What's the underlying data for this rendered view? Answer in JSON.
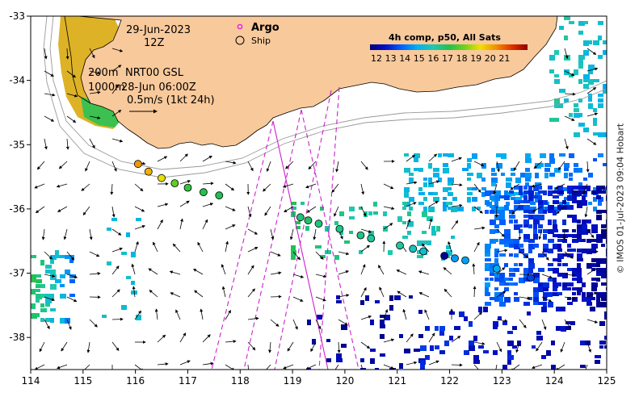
{
  "header": {
    "date": "29-Jun-2023",
    "hour": "12Z",
    "depth_line1_label": "200m",
    "product": "NRT00 GSL",
    "depth_line2_label": "1000m",
    "altimetry_time": "28-Jun 06:00Z",
    "vector_scale": "0.5m/s (1kt 24h)"
  },
  "legend": {
    "argo_label": "Argo",
    "ship_label": "Ship",
    "argo_color": "#e020e0"
  },
  "colorbar": {
    "title": "4h comp, p50, All Sats",
    "ticks": [
      "12",
      "13",
      "14",
      "15",
      "16",
      "17",
      "18",
      "19",
      "20",
      "21"
    ],
    "colors": [
      "#000080",
      "#0010c8",
      "#0060ff",
      "#00b0f0",
      "#20c8b0",
      "#20c050",
      "#70d020",
      "#f0e000",
      "#f09000",
      "#e03000",
      "#900000"
    ]
  },
  "axes": {
    "x_ticks": [
      "114",
      "115",
      "116",
      "117",
      "118",
      "119",
      "120",
      "121",
      "122",
      "123",
      "124",
      "125"
    ],
    "y_ticks": [
      "-33",
      "-34",
      "-35",
      "-36",
      "-37",
      "-38"
    ],
    "lon_range": [
      114,
      125
    ],
    "lat_range": [
      -38.5,
      -33
    ]
  },
  "colors": {
    "land": "#f8c99b",
    "coast": "#000000",
    "contour": "#999999",
    "track": "#cc22cc"
  },
  "ship_track": [
    {
      "lon": 116.05,
      "lat": -35.3,
      "sst": 19.5
    },
    {
      "lon": 116.25,
      "lat": -35.42,
      "sst": 19.2
    },
    {
      "lon": 116.5,
      "lat": -35.52,
      "sst": 18.6
    },
    {
      "lon": 116.75,
      "lat": -35.6,
      "sst": 17.5
    },
    {
      "lon": 117.0,
      "lat": -35.67,
      "sst": 17.0
    },
    {
      "lon": 117.3,
      "lat": -35.74,
      "sst": 16.8
    },
    {
      "lon": 117.6,
      "lat": -35.79,
      "sst": 16.7
    },
    {
      "lon": 119.15,
      "lat": -36.13,
      "sst": 16.3
    },
    {
      "lon": 119.3,
      "lat": -36.18,
      "sst": 16.5
    },
    {
      "lon": 119.5,
      "lat": -36.23,
      "sst": 16.3
    },
    {
      "lon": 119.9,
      "lat": -36.31,
      "sst": 16.2
    },
    {
      "lon": 120.3,
      "lat": -36.41,
      "sst": 16.2
    },
    {
      "lon": 120.5,
      "lat": -36.46,
      "sst": 16.0
    },
    {
      "lon": 121.05,
      "lat": -36.57,
      "sst": 16.0
    },
    {
      "lon": 121.3,
      "lat": -36.62,
      "sst": 15.6
    },
    {
      "lon": 121.5,
      "lat": -36.66,
      "sst": 15.4
    },
    {
      "lon": 121.9,
      "lat": -36.73,
      "sst": 12.3
    },
    {
      "lon": 122.1,
      "lat": -36.77,
      "sst": 14.6
    },
    {
      "lon": 122.3,
      "lat": -36.8,
      "sst": 14.7
    },
    {
      "lon": 122.9,
      "lat": -36.93,
      "sst": 14.8
    },
    {
      "lon": 123.55,
      "lat": -37.07,
      "sst": 13.5
    }
  ],
  "credit": "© IMOS 01-Jul-2023 09:04 Hobart"
}
